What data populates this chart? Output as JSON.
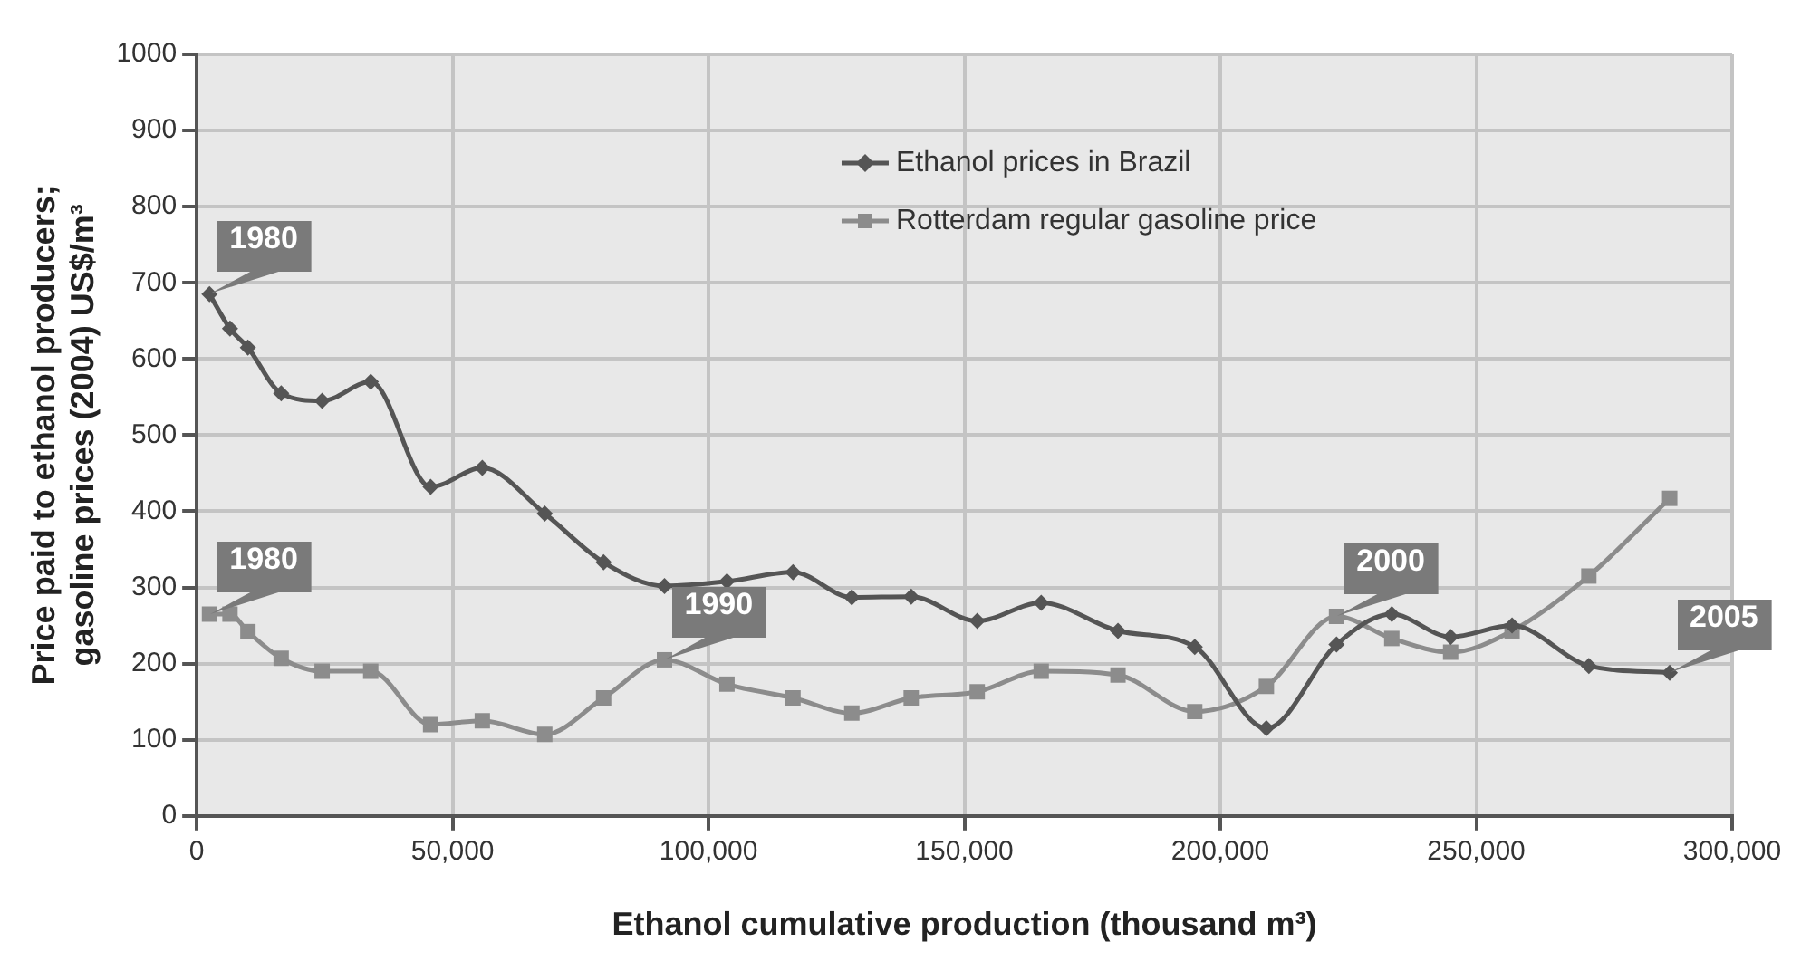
{
  "chart_data": {
    "type": "line",
    "xlabel": "Ethanol cumulative production (thousand m³)",
    "ylabel": "Price paid to ethanol producers; gasoline prices (2004) US$/m³",
    "x": [
      2500,
      6500,
      10000,
      16500,
      24500,
      34000,
      45700,
      55800,
      68000,
      79500,
      91400,
      103600,
      116500,
      128000,
      139600,
      152500,
      165000,
      180000,
      195000,
      209000,
      222700,
      233500,
      245000,
      257000,
      272000,
      287800
    ],
    "series": [
      {
        "name": "Ethanol prices in Brazil",
        "color": "#555555",
        "marker": "diamond",
        "values": [
          685,
          640,
          615,
          555,
          545,
          570,
          432,
          457,
          397,
          333,
          302,
          308,
          320,
          287,
          288,
          256,
          280,
          243,
          222,
          115,
          225,
          265,
          235,
          250,
          197,
          188
        ]
      },
      {
        "name": "Rotterdam regular gasoline price",
        "color": "#8c8c8c",
        "marker": "square",
        "values": [
          265,
          265,
          242,
          207,
          190,
          190,
          120,
          125,
          107,
          155,
          205,
          173,
          155,
          135,
          155,
          163,
          190,
          185,
          137,
          170,
          262,
          233,
          215,
          243,
          315,
          417
        ]
      }
    ],
    "xlim": [
      0,
      300000
    ],
    "xticks": [
      {
        "value": 0,
        "label": "0"
      },
      {
        "value": 50000,
        "label": "50,000"
      },
      {
        "value": 100000,
        "label": "100,000"
      },
      {
        "value": 150000,
        "label": "150,000"
      },
      {
        "value": 200000,
        "label": "200,000"
      },
      {
        "value": 250000,
        "label": "250,000"
      },
      {
        "value": 300000,
        "label": "300,000"
      }
    ],
    "ylim": [
      0,
      1000
    ],
    "yticks": [
      0,
      100,
      200,
      300,
      400,
      500,
      600,
      700,
      800,
      900,
      1000
    ],
    "grid": true,
    "legend": "top",
    "line_style": "solid",
    "annotations": [
      {
        "text": "1980",
        "x": 2500,
        "y": 685
      },
      {
        "text": "1980",
        "x": 2500,
        "y": 265
      },
      {
        "text": "1990",
        "x": 91400,
        "y": 205
      },
      {
        "text": "2000",
        "x": 222700,
        "y": 262
      },
      {
        "text": "2005",
        "x": 287800,
        "y": 188
      }
    ]
  }
}
